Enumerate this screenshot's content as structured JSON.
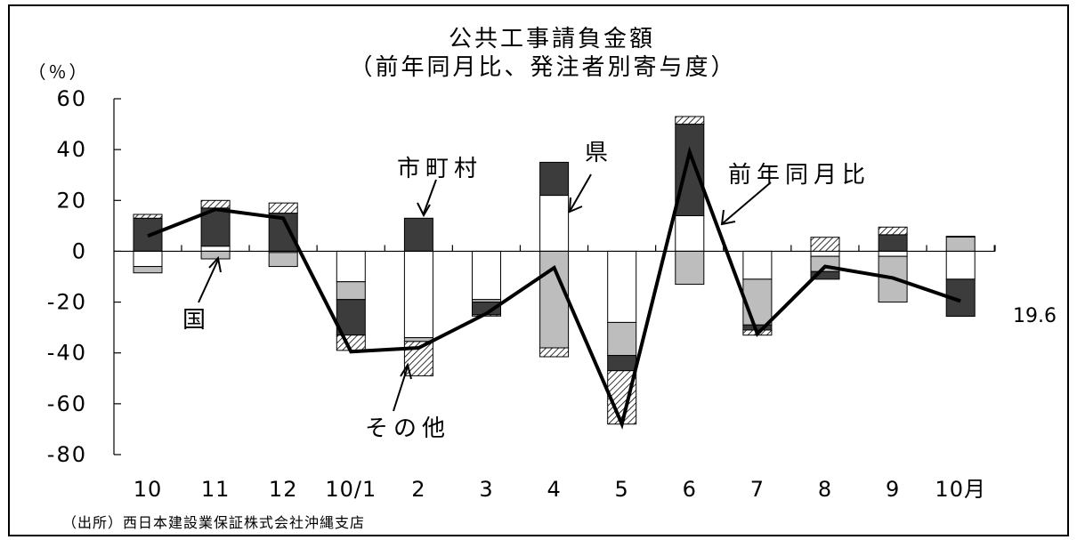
{
  "chart_data": {
    "type": "bar",
    "title": "公共工事請負金額",
    "subtitle": "（前年同月比、発注者別寄与度）",
    "ylabel": "（％）",
    "ylim": [
      -80,
      60
    ],
    "yticks": [
      60,
      40,
      20,
      0,
      -20,
      -40,
      -60,
      -80
    ],
    "ytick_labels": [
      "60",
      "40",
      "20",
      "0",
      "-20",
      "-40",
      "-60",
      "-80"
    ],
    "categories": [
      "10",
      "11",
      "12",
      "10/1",
      "2",
      "3",
      "4",
      "5",
      "6",
      "7",
      "8",
      "9",
      "10月"
    ],
    "stacking": "diverging",
    "series": [
      {
        "name": "国",
        "values": [
          -6,
          2,
          -0.5,
          -12,
          -34,
          -19,
          22,
          -28,
          14,
          -11,
          -2,
          -2,
          -11
        ]
      },
      {
        "name": "県",
        "values": [
          -2.5,
          -3,
          -5.5,
          -7,
          -1.5,
          -1,
          -38,
          -13,
          -13,
          -18,
          -6,
          -18,
          5.6
        ]
      },
      {
        "name": "市町村",
        "values": [
          13,
          15,
          15,
          -14,
          13,
          -5,
          13,
          -6,
          36,
          -2,
          -3,
          6.5,
          -14.6
        ]
      },
      {
        "name": "その他",
        "values": [
          1.5,
          3,
          4,
          -6,
          -13.5,
          -0.5,
          -3.5,
          -21,
          3,
          -2,
          5.5,
          3,
          0.3
        ]
      }
    ],
    "line_series": {
      "name": "前年同月比",
      "values": [
        6,
        16.5,
        13,
        -39.5,
        -38,
        -24.5,
        -6.5,
        -68,
        39,
        -32.5,
        -6,
        -10.5,
        -19.6
      ]
    },
    "annotations": [
      "市町村",
      "県",
      "前年同月比",
      "国",
      "その他"
    ],
    "end_value_label": "19.6",
    "source": "（出所）西日本建設業保証株式会社沖縄支店",
    "colors": {
      "国": "#ffffff",
      "県": "#bdbdbd",
      "市町村": "#3c3c3c",
      "その他": "hatched",
      "line": "#000000"
    }
  }
}
